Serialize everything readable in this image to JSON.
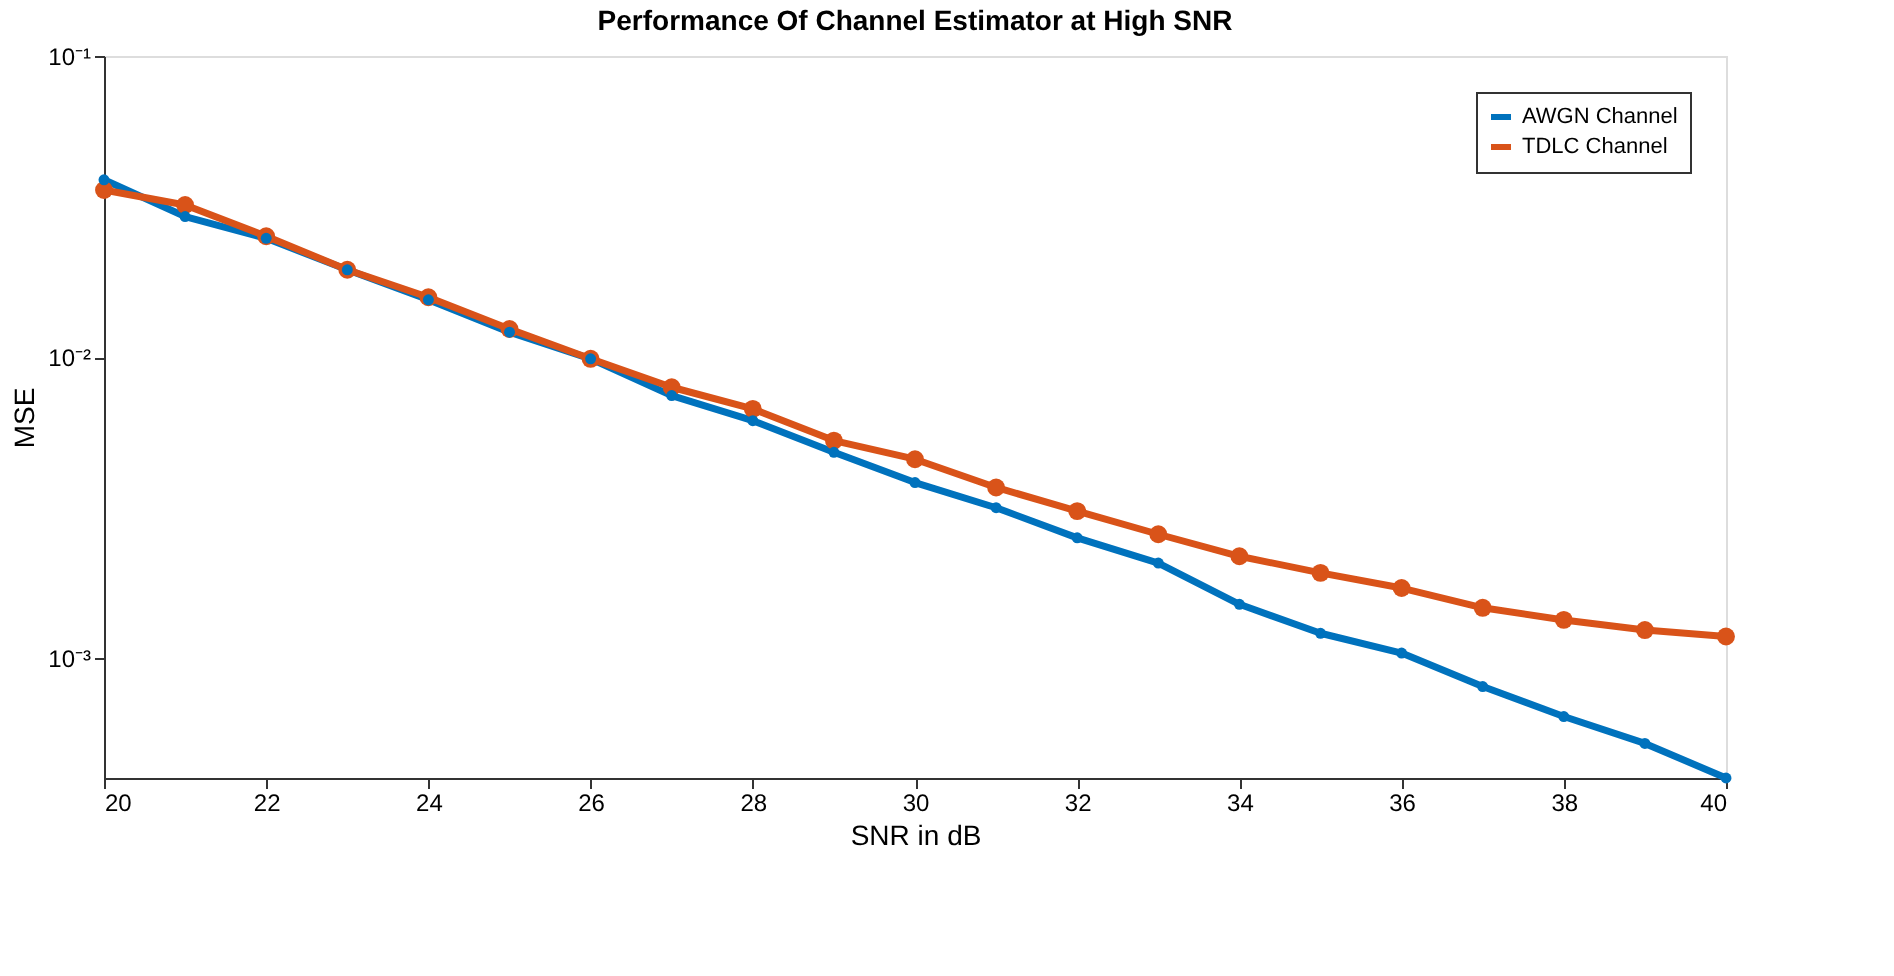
{
  "chart_data": {
    "type": "line",
    "title": "Performance Of Channel Estimator at High SNR",
    "xlabel": "SNR in dB",
    "ylabel": "MSE",
    "x": [
      20,
      21,
      22,
      23,
      24,
      25,
      26,
      27,
      28,
      29,
      30,
      31,
      32,
      33,
      34,
      35,
      36,
      37,
      38,
      39,
      40
    ],
    "series": [
      {
        "name": "AWGN Channel",
        "color": "#0072bd",
        "values": [
          0.0388,
          0.0293,
          0.0248,
          0.0195,
          0.0155,
          0.0121,
          0.00987,
          0.00745,
          0.00615,
          0.00483,
          0.00383,
          0.00316,
          0.00251,
          0.00207,
          0.00151,
          0.00121,
          0.00104,
          0.000805,
          0.00064,
          0.000521,
          0.0004
        ]
      },
      {
        "name": "TDLC Channel",
        "color": "#d95319",
        "values": [
          0.0359,
          0.032,
          0.0252,
          0.0195,
          0.0158,
          0.0124,
          0.00987,
          0.00794,
          0.00673,
          0.00528,
          0.00458,
          0.00369,
          0.00308,
          0.00258,
          0.00218,
          0.00192,
          0.00171,
          0.00147,
          0.00134,
          0.00124,
          0.00118
        ]
      }
    ],
    "log": "y",
    "xlim": [
      20,
      40
    ],
    "xticks": [
      20,
      22,
      24,
      26,
      28,
      30,
      32,
      34,
      36,
      38,
      40
    ],
    "ylim": [
      0.0004,
      0.1
    ],
    "yticks": [
      {
        "value": 0.1,
        "label": "10⁻¹"
      },
      {
        "value": 0.01,
        "label": "10⁻²"
      },
      {
        "value": 0.001,
        "label": "10⁻³"
      }
    ],
    "grid": false,
    "legend": "top right",
    "marker": "circle",
    "line_style": "solid"
  }
}
